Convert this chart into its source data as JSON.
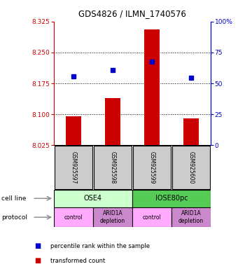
{
  "title": "GDS4826 / ILMN_1740576",
  "samples": [
    "GSM925597",
    "GSM925598",
    "GSM925599",
    "GSM925600"
  ],
  "bar_values": [
    8.095,
    8.14,
    8.305,
    8.09
  ],
  "bar_bottom": 8.025,
  "blue_values": [
    8.192,
    8.207,
    8.228,
    8.189
  ],
  "ylim_left": [
    8.025,
    8.325
  ],
  "ylim_right": [
    0,
    100
  ],
  "left_ticks": [
    8.025,
    8.1,
    8.175,
    8.25,
    8.325
  ],
  "right_ticks": [
    0,
    25,
    50,
    75,
    100
  ],
  "right_tick_labels": [
    "0",
    "25",
    "50",
    "75",
    "100%"
  ],
  "hlines": [
    8.1,
    8.175,
    8.25
  ],
  "bar_color": "#cc0000",
  "blue_color": "#0000cc",
  "cell_line_groups": [
    {
      "label": "OSE4",
      "start": 0,
      "end": 2,
      "color": "#ccffcc"
    },
    {
      "label": "IOSE80pc",
      "start": 2,
      "end": 4,
      "color": "#55cc55"
    }
  ],
  "protocol_groups": [
    {
      "label": "control",
      "start": 0,
      "end": 1,
      "color": "#ffaaff"
    },
    {
      "label": "ARID1A\ndepletion",
      "start": 1,
      "end": 2,
      "color": "#cc88cc"
    },
    {
      "label": "control",
      "start": 2,
      "end": 3,
      "color": "#ffaaff"
    },
    {
      "label": "ARID1A\ndepletion",
      "start": 3,
      "end": 4,
      "color": "#cc88cc"
    }
  ],
  "left_label_color": "#cc0000",
  "right_label_color": "#0000cc",
  "sample_box_color": "#cccccc",
  "legend_items": [
    {
      "color": "#cc0000",
      "label": "transformed count"
    },
    {
      "color": "#0000cc",
      "label": "percentile rank within the sample"
    }
  ]
}
